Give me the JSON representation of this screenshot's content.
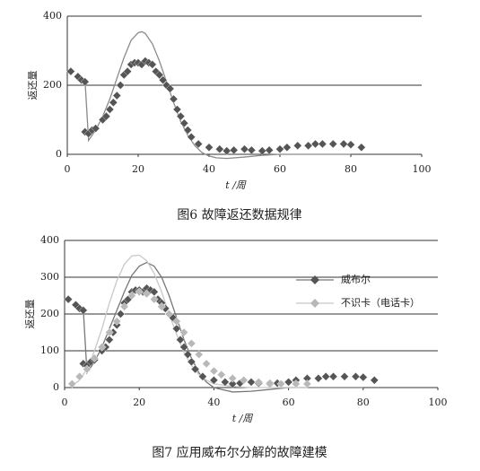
{
  "chart_data": [
    {
      "type": "scatter",
      "caption": "图6  故障返还数据规律",
      "y_label": "返还量",
      "x_label": "t /周",
      "xlim": [
        0,
        100
      ],
      "xticks": [
        0,
        20,
        40,
        60,
        80,
        100
      ],
      "ylim": [
        0,
        400
      ],
      "yticks": [
        0,
        200,
        400
      ],
      "grid": true,
      "series": [
        {
          "color": "#555555",
          "curve_color": "#8a8a8a",
          "x": [
            1,
            3,
            4,
            5,
            5,
            6,
            7,
            8,
            10,
            11,
            12,
            13,
            14,
            15,
            16,
            17,
            18,
            19,
            20,
            21,
            22,
            23,
            24,
            25,
            26,
            27,
            28,
            29,
            30,
            31,
            32,
            33,
            34,
            35,
            37,
            40,
            43,
            45,
            47,
            50,
            52,
            55,
            57,
            60,
            62,
            65,
            68,
            70,
            72,
            75,
            78,
            80,
            83
          ],
          "values": [
            240,
            225,
            215,
            210,
            65,
            60,
            70,
            75,
            100,
            110,
            130,
            150,
            170,
            200,
            230,
            240,
            260,
            265,
            265,
            260,
            270,
            265,
            260,
            240,
            230,
            215,
            200,
            190,
            160,
            130,
            110,
            90,
            70,
            50,
            30,
            20,
            15,
            10,
            12,
            15,
            12,
            10,
            12,
            15,
            20,
            25,
            25,
            30,
            30,
            30,
            30,
            28,
            20
          ],
          "curve": {
            "x": [
              5,
              6,
              8,
              10,
              12,
              14,
              16,
              18,
              20,
              21,
              22,
              24,
              26,
              28,
              30,
              32,
              34,
              36,
              38,
              40,
              42,
              45,
              50,
              55,
              60,
              70,
              80
            ],
            "values": [
              215,
              40,
              70,
              110,
              160,
              220,
              280,
              330,
              352,
              355,
              350,
              320,
              270,
              210,
              150,
              95,
              55,
              25,
              5,
              -5,
              -10,
              -12,
              -8,
              -3,
              0,
              0,
              0
            ]
          }
        }
      ]
    },
    {
      "type": "scatter",
      "caption": "图7  应用威布尔分解的故障建模",
      "y_label": "返还量",
      "x_label": "t /周",
      "xlim": [
        0,
        100
      ],
      "xticks": [
        0,
        20,
        40,
        60,
        80,
        100
      ],
      "ylim": [
        0,
        400
      ],
      "yticks": [
        0,
        100,
        200,
        300,
        400
      ],
      "grid": true,
      "series": [
        {
          "name": "威布尔",
          "color": "#555555",
          "curve_color": "#777777",
          "x": [
            1,
            3,
            4,
            5,
            5,
            6,
            7,
            8,
            10,
            11,
            12,
            13,
            14,
            15,
            16,
            17,
            18,
            19,
            20,
            21,
            22,
            23,
            24,
            25,
            26,
            27,
            28,
            29,
            30,
            31,
            32,
            33,
            34,
            35,
            37,
            40,
            43,
            45,
            47,
            50,
            52,
            55,
            57,
            60,
            62,
            65,
            68,
            70,
            72,
            75,
            78,
            80,
            83
          ],
          "values": [
            240,
            225,
            215,
            210,
            65,
            60,
            70,
            75,
            100,
            110,
            130,
            150,
            170,
            200,
            230,
            240,
            260,
            265,
            265,
            260,
            270,
            265,
            260,
            240,
            230,
            215,
            200,
            190,
            160,
            130,
            110,
            90,
            70,
            50,
            30,
            20,
            15,
            10,
            12,
            15,
            12,
            10,
            12,
            15,
            20,
            25,
            25,
            30,
            30,
            30,
            30,
            28,
            20
          ],
          "curve": {
            "x": [
              5,
              6,
              8,
              10,
              12,
              14,
              16,
              18,
              20,
              22,
              24,
              26,
              28,
              30,
              32,
              34,
              36,
              38,
              40,
              45,
              50,
              55,
              60,
              70,
              80
            ],
            "values": [
              215,
              40,
              70,
              110,
              160,
              210,
              260,
              305,
              330,
              340,
              330,
              300,
              250,
              190,
              130,
              80,
              40,
              15,
              0,
              -12,
              -10,
              -5,
              0,
              0,
              0
            ]
          }
        },
        {
          "name": "不识卡（电话卡）",
          "color": "#b8b8b8",
          "curve_color": "#c8c8c8",
          "x": [
            2,
            4,
            6,
            8,
            10,
            12,
            14,
            16,
            18,
            20,
            22,
            24,
            26,
            28,
            30,
            32,
            34,
            36,
            38,
            40,
            42,
            45,
            48,
            52,
            55,
            58,
            62,
            65
          ],
          "values": [
            10,
            30,
            50,
            80,
            110,
            150,
            180,
            220,
            250,
            260,
            255,
            240,
            220,
            200,
            180,
            150,
            120,
            90,
            65,
            45,
            35,
            25,
            20,
            15,
            12,
            10,
            10,
            10
          ],
          "curve": {
            "x": [
              2,
              4,
              6,
              8,
              10,
              12,
              14,
              16,
              18,
              20,
              22,
              24,
              26,
              28,
              30,
              32,
              34,
              36,
              38,
              40,
              45,
              50,
              55,
              60,
              65
            ],
            "values": [
              5,
              20,
              50,
              100,
              160,
              230,
              290,
              335,
              358,
              360,
              345,
              310,
              260,
              200,
              145,
              95,
              60,
              35,
              20,
              10,
              3,
              0,
              0,
              0,
              0
            ]
          }
        }
      ]
    }
  ]
}
